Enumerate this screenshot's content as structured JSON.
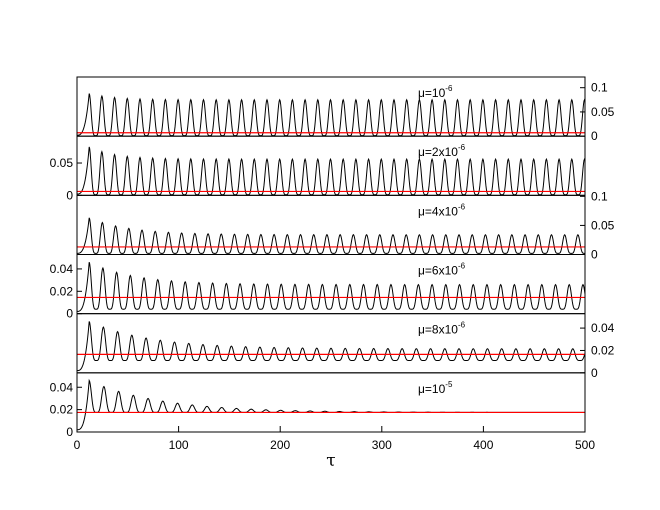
{
  "chart_data": {
    "type": "line",
    "x": {
      "label": "τ",
      "range": [
        0,
        500
      ],
      "ticks": [
        0,
        100,
        200,
        300,
        400,
        500
      ]
    },
    "colors": {
      "oscillation": "#000000",
      "equilibrium": "#ff0000",
      "frame": "#000000"
    },
    "panels": [
      {
        "mu_base": "μ=10",
        "mu_exp": "-6",
        "y_axis_side": "right",
        "ylim": [
          0,
          0.12
        ],
        "y_ticks": [
          {
            "value": 0,
            "label": "0"
          },
          {
            "value": 0.05,
            "label": "0.05"
          },
          {
            "value": 0.1,
            "label": "0.1"
          }
        ],
        "series": [
          {
            "type": "damped_oscillation",
            "period": 12.5,
            "first_peak_x": 12,
            "first_peak": 0.088,
            "late_peak": 0.075,
            "trough": 0.001,
            "decay_tau": 25,
            "start_y": 0.002
          },
          {
            "type": "horizontal",
            "y": 0.007
          }
        ]
      },
      {
        "mu_base": "μ=2x10",
        "mu_exp": "-6",
        "y_axis_side": "left",
        "ylim": [
          0,
          0.09
        ],
        "y_ticks": [
          {
            "value": 0,
            "label": "0"
          },
          {
            "value": 0.05,
            "label": "0.05"
          }
        ],
        "series": [
          {
            "type": "damped_oscillation",
            "period": 12.5,
            "first_peak_x": 12,
            "first_peak": 0.075,
            "late_peak": 0.056,
            "trough": 0.001,
            "decay_tau": 25,
            "start_y": 0.002
          },
          {
            "type": "horizontal",
            "y": 0.006
          }
        ]
      },
      {
        "mu_base": "μ=4x10",
        "mu_exp": "-6",
        "y_axis_side": "right",
        "ylim": [
          0,
          0.1
        ],
        "y_ticks": [
          {
            "value": 0,
            "label": "0"
          },
          {
            "value": 0.05,
            "label": "0.05"
          },
          {
            "value": 0.1,
            "label": "0.1"
          }
        ],
        "series": [
          {
            "type": "damped_oscillation",
            "period": 13,
            "first_peak_x": 12,
            "first_peak": 0.063,
            "late_peak": 0.034,
            "trough": 0.002,
            "decay_tau": 40,
            "start_y": 0.002
          },
          {
            "type": "horizontal",
            "y": 0.013
          }
        ]
      },
      {
        "mu_base": "μ=6x10",
        "mu_exp": "-6",
        "y_axis_side": "left",
        "ylim": [
          0,
          0.052
        ],
        "y_ticks": [
          {
            "value": 0,
            "label": "0"
          },
          {
            "value": 0.02,
            "label": "0.02"
          },
          {
            "value": 0.04,
            "label": "0.04"
          }
        ],
        "series": [
          {
            "type": "damped_oscillation",
            "period": 13.5,
            "first_peak_x": 12,
            "first_peak": 0.046,
            "late_peak": 0.026,
            "trough": 0.004,
            "decay_tau": 45,
            "start_y": 0.002
          },
          {
            "type": "horizontal",
            "y": 0.0145
          }
        ]
      },
      {
        "mu_base": "μ=8x10",
        "mu_exp": "-6",
        "y_axis_side": "right",
        "ylim": [
          0,
          0.052
        ],
        "y_ticks": [
          {
            "value": 0,
            "label": "0"
          },
          {
            "value": 0.02,
            "label": "0.02"
          },
          {
            "value": 0.04,
            "label": "0.04"
          }
        ],
        "series": [
          {
            "type": "damped_oscillation",
            "period": 14,
            "first_peak_x": 12,
            "first_peak": 0.046,
            "late_peak": 0.0215,
            "trough": 0.011,
            "decay_tau": 60,
            "start_y": 0.002
          },
          {
            "type": "horizontal",
            "y": 0.0165
          }
        ]
      },
      {
        "mu_base": "μ=10",
        "mu_exp": "-5",
        "y_axis_side": "left",
        "ylim": [
          0,
          0.052
        ],
        "y_ticks": [
          {
            "value": 0,
            "label": "0"
          },
          {
            "value": 0.02,
            "label": "0.02"
          },
          {
            "value": 0.04,
            "label": "0.04"
          }
        ],
        "series": [
          {
            "type": "damped_oscillation",
            "period": 14.5,
            "first_peak_x": 12,
            "first_peak": 0.046,
            "late_peak": 0.0175,
            "trough": 0.0175,
            "decay_tau": 70,
            "start_y": 0.002
          },
          {
            "type": "horizontal",
            "y": 0.0175
          }
        ]
      }
    ]
  }
}
